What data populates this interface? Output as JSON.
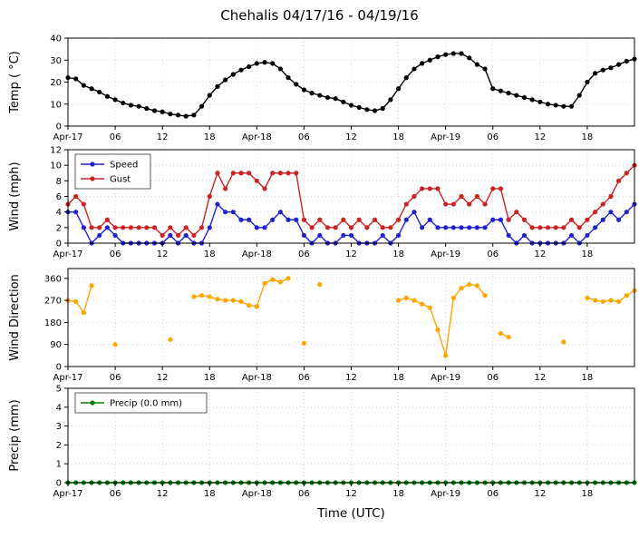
{
  "title": "Chehalis 04/17/16 - 04/19/16",
  "x_axis": {
    "label": "Time (UTC)",
    "tick_hours": [
      0,
      6,
      12,
      18,
      24,
      30,
      36,
      42,
      48,
      54,
      60,
      66
    ],
    "tick_labels": [
      "Apr-17",
      "06",
      "12",
      "18",
      "Apr-18",
      "06",
      "12",
      "18",
      "Apr-19",
      "06",
      "12",
      "18"
    ],
    "range_hours": [
      0,
      72
    ]
  },
  "chart_data": [
    {
      "type": "line",
      "ylabel": "Temp ( °C)",
      "ylim": [
        0,
        40
      ],
      "yticks": [
        0,
        10,
        20,
        30,
        40
      ],
      "legend": false,
      "series": [
        {
          "name": "Temp",
          "color": "#000000",
          "values": [
            22,
            21.5,
            18.5,
            17,
            15.5,
            13.5,
            12,
            10.5,
            9.5,
            9,
            8,
            7,
            6.5,
            5.5,
            5,
            4.5,
            5,
            9,
            14,
            18,
            21,
            23.5,
            25.5,
            27,
            28.5,
            29,
            28.5,
            26,
            22,
            19,
            16.5,
            15,
            14,
            13,
            12.5,
            11,
            9.5,
            8.5,
            7.5,
            7,
            8,
            12,
            17,
            22,
            26,
            28.5,
            30,
            31.5,
            32.5,
            33,
            33,
            31,
            28,
            26,
            17,
            16,
            15,
            14,
            13,
            12,
            11,
            10,
            9.5,
            9,
            9,
            14,
            20,
            24,
            25.5,
            26.5,
            28,
            29.5,
            30.5
          ]
        }
      ]
    },
    {
      "type": "line",
      "ylabel": "Wind (mph)",
      "ylim": [
        0,
        12
      ],
      "yticks": [
        0,
        2,
        4,
        6,
        8,
        10,
        12
      ],
      "legend": true,
      "series": [
        {
          "name": "Speed",
          "color": "#2222cc",
          "values": [
            4,
            4,
            2,
            0,
            1,
            2,
            1,
            0,
            0,
            0,
            0,
            0,
            0,
            1,
            0,
            1,
            0,
            0,
            2,
            5,
            4,
            4,
            3,
            3,
            2,
            2,
            3,
            4,
            3,
            3,
            1,
            0,
            1,
            0,
            0,
            1,
            1,
            0,
            0,
            0,
            1,
            0,
            1,
            3,
            4,
            2,
            3,
            2,
            2,
            2,
            2,
            2,
            2,
            2,
            3,
            3,
            1,
            0,
            1,
            0,
            0,
            0,
            0,
            0,
            1,
            0,
            1,
            2,
            3,
            4,
            3,
            4,
            5
          ]
        },
        {
          "name": "Gust",
          "color": "#cc2222",
          "values": [
            5,
            6,
            5,
            2,
            2,
            3,
            2,
            2,
            2,
            2,
            2,
            2,
            1,
            2,
            1,
            2,
            1,
            2,
            6,
            9,
            7,
            9,
            9,
            9,
            8,
            7,
            9,
            9,
            9,
            9,
            3,
            2,
            3,
            2,
            2,
            3,
            2,
            3,
            2,
            3,
            2,
            2,
            3,
            5,
            6,
            7,
            7,
            7,
            5,
            5,
            6,
            5,
            6,
            5,
            7,
            7,
            3,
            4,
            3,
            2,
            2,
            2,
            2,
            2,
            3,
            2,
            3,
            4,
            5,
            6,
            8,
            9,
            10
          ]
        }
      ]
    },
    {
      "type": "scatter",
      "ylabel": "Wind Direction",
      "ylim": [
        0,
        400
      ],
      "yticks": [
        0,
        90,
        180,
        270,
        360
      ],
      "legend": false,
      "series": [
        {
          "name": "Direction",
          "color": "#ffa500",
          "x": [
            0,
            1,
            2,
            3,
            6,
            13,
            16,
            17,
            18,
            19,
            20,
            21,
            22,
            23,
            24,
            25,
            26,
            27,
            28,
            30,
            32,
            42,
            43,
            44,
            45,
            46,
            47,
            48,
            49,
            50,
            51,
            52,
            53,
            55,
            56,
            63,
            66,
            67,
            68,
            69,
            70,
            71,
            72
          ],
          "values": [
            270,
            265,
            220,
            330,
            90,
            110,
            285,
            290,
            285,
            275,
            270,
            270,
            265,
            250,
            245,
            340,
            355,
            345,
            360,
            95,
            335,
            270,
            280,
            270,
            255,
            240,
            150,
            45,
            280,
            320,
            335,
            330,
            290,
            135,
            120,
            100,
            280,
            270,
            265,
            270,
            265,
            290,
            310
          ]
        }
      ]
    },
    {
      "type": "line",
      "ylabel": "Precip (mm)",
      "ylim": [
        0,
        5
      ],
      "yticks": [
        0,
        1,
        2,
        3,
        4,
        5
      ],
      "legend": true,
      "series": [
        {
          "name": "Precip (0.0 mm)",
          "color": "#008000",
          "values": [
            0,
            0,
            0,
            0,
            0,
            0,
            0,
            0,
            0,
            0,
            0,
            0,
            0,
            0,
            0,
            0,
            0,
            0,
            0,
            0,
            0,
            0,
            0,
            0,
            0,
            0,
            0,
            0,
            0,
            0,
            0,
            0,
            0,
            0,
            0,
            0,
            0,
            0,
            0,
            0,
            0,
            0,
            0,
            0,
            0,
            0,
            0,
            0,
            0,
            0,
            0,
            0,
            0,
            0,
            0,
            0,
            0,
            0,
            0,
            0,
            0,
            0,
            0,
            0,
            0,
            0,
            0,
            0,
            0,
            0,
            0,
            0,
            0
          ]
        }
      ]
    }
  ]
}
